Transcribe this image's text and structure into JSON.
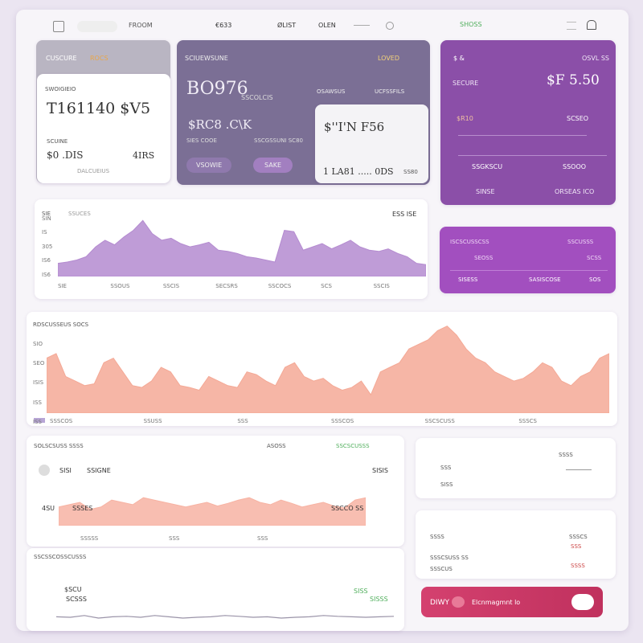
{
  "top_bar": {
    "tab": "FROOM",
    "items": [
      "€633",
      "ØLIST",
      "OLEN"
    ],
    "status": "SHOSS"
  },
  "card_balance": {
    "header": "CUSCURE",
    "tag": "ROCS",
    "label": "SWOIGIEIO",
    "amount": "T161140 $V5",
    "sub": "SCUINE",
    "foot_left": "$0 .DIS",
    "foot_right": "4IRS",
    "note": "DALCUEIUS"
  },
  "card_summary": {
    "header": "SCIUEWSUNE",
    "tag": "LOVED",
    "amount": "BO976",
    "amount_sub": "SSCOLCIS",
    "right_label": "OSAWSUS",
    "right_label_2": "UCFSSFILS",
    "value": "$RC8 .C\\K",
    "row_left": "SIES COOE",
    "row_right": "SSCGSSUNI SC80",
    "buttons": [
      "VSOWIE",
      "SAKE"
    ]
  },
  "card_overlay": {
    "amount": "$''I'N F56",
    "foot": "1 LA81 ..... 0DS",
    "foot_right": "SS80"
  },
  "card_purple": {
    "tag": "$ &",
    "amount": "$F 5.50",
    "label": "SECURE",
    "right_label": "OSVL SS",
    "left_value": "$R10",
    "right_value": "SCSEO",
    "row_left": "SSGKSCU",
    "row_right": "SSOOO",
    "foot_left": "SINSE",
    "foot_right": "ORSEAS ICO"
  },
  "card_violet": {
    "labels": [
      "ISCSCUSSCSS",
      "SSCUSSS"
    ],
    "rows": [
      "SEOSS",
      "SCSS"
    ],
    "foot": [
      "SISESS",
      "SASISCOSE",
      "SOS"
    ]
  },
  "charts": [
    {
      "title": "SIE",
      "legend": "SSUCES",
      "right": "ESS ISE",
      "ylim": [
        0,
        100
      ],
      "yticks_labels": [
        "SIN",
        "IS",
        "305",
        "IS6",
        "IS6"
      ],
      "x_labels": [
        "SIE",
        "SSOUS",
        "SSCIS",
        "SECSRS",
        "SSCOCS",
        "SCS",
        "SSCIS"
      ],
      "color": "#b48bd0",
      "values": [
        20,
        22,
        25,
        30,
        45,
        55,
        48,
        60,
        70,
        85,
        65,
        55,
        58,
        50,
        45,
        48,
        52,
        40,
        38,
        35,
        30,
        28,
        25,
        22,
        70,
        68,
        40,
        45,
        50,
        42,
        48,
        55,
        45,
        40,
        38,
        42,
        35,
        30,
        20,
        18
      ]
    },
    {
      "title": "RDSCUSSEUS SOCS",
      "ylim": [
        0,
        100
      ],
      "yticks_labels": [
        "SIO",
        "SEO",
        "ISIS",
        "ISS",
        "ISS"
      ],
      "x_labels": [
        "SSSCOS",
        "SSUSS",
        "SSS",
        "SSSCOS",
        "SSCSCUSS",
        "SSSCS"
      ],
      "color": "#f4a996",
      "values": [
        60,
        65,
        40,
        35,
        30,
        32,
        55,
        60,
        45,
        30,
        28,
        35,
        50,
        45,
        30,
        28,
        25,
        40,
        35,
        30,
        28,
        45,
        42,
        35,
        30,
        50,
        55,
        40,
        35,
        38,
        30,
        25,
        28,
        35,
        20,
        45,
        50,
        55,
        70,
        75,
        80,
        90,
        95,
        85,
        70,
        60,
        55,
        45,
        40,
        35,
        38,
        45,
        55,
        50,
        35,
        30,
        40,
        45,
        60,
        65
      ]
    },
    {
      "title": "SOLSCSUSS SSSS",
      "header_right": "ASOSS",
      "header_right_2": "SSCSCUSSS",
      "label": "SISI",
      "label_2": "SSIGNE",
      "right": "SISIS",
      "left_value": "4SU",
      "left_value_2": "SSSES",
      "right_value": "SSCCO SS",
      "x_labels": [
        "SSSSS",
        "SSS",
        "SSS"
      ],
      "ylim": [
        0,
        100
      ],
      "color": "#f7b3a3",
      "values": [
        40,
        45,
        50,
        35,
        40,
        55,
        50,
        45,
        60,
        55,
        50,
        45,
        40,
        45,
        50,
        42,
        48,
        55,
        60,
        50,
        45,
        55,
        48,
        40,
        45,
        50,
        42,
        38,
        55,
        60
      ]
    },
    {
      "title": "SSCSSCOSSCUSSS",
      "label": "$SCU",
      "label_2": "SCSSS",
      "right": "SISS",
      "right_2": "SISSS",
      "ylim": [
        0,
        100
      ],
      "color": "#9a93a8",
      "values": [
        30,
        28,
        35,
        25,
        30,
        32,
        28,
        35,
        30,
        25,
        28,
        30,
        35,
        32,
        28,
        30,
        25,
        28,
        30,
        35,
        32,
        30,
        28,
        30,
        32
      ]
    }
  ],
  "side_panel_1": {
    "labels": [
      "SSS",
      "SISS"
    ],
    "right": "SSSS"
  },
  "side_panel_2": {
    "labels": [
      "SSSS",
      "SSSCSUSS SS",
      "SSSCUS"
    ],
    "right": [
      "SSSCS",
      "SSS",
      "SSSS"
    ]
  },
  "action_button": {
    "left": "DIWY",
    "label": "Elcnmagmnt lo"
  }
}
